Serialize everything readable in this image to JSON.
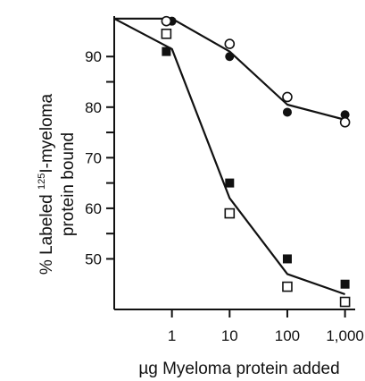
{
  "chart_data": {
    "type": "scatter",
    "title": "",
    "xlabel": "µg Myeloma protein added",
    "ylabel_prefix": "% Labeled ",
    "ylabel_sup": "125",
    "ylabel_rest": "I-myeloma",
    "ylabel_line2": "protein bound",
    "x_scale": "log",
    "xlim": [
      0.1,
      1500
    ],
    "ylim": [
      40,
      98
    ],
    "x_ticks": [
      1,
      10,
      100,
      1000
    ],
    "x_tick_labels": [
      "1",
      "10",
      "100",
      "1,000"
    ],
    "y_ticks": [
      50,
      60,
      70,
      80,
      90
    ],
    "y_tick_labels": [
      "50",
      "60",
      "70",
      "80",
      "90"
    ],
    "y_minor_ticks": [
      55,
      65,
      75,
      85
    ],
    "grid": false,
    "legend": "none",
    "series": [
      {
        "marker": "filled-circle",
        "points": [
          [
            1,
            97
          ],
          [
            10,
            90
          ],
          [
            100,
            79
          ],
          [
            1000,
            78.5
          ]
        ]
      },
      {
        "marker": "open-circle",
        "points": [
          [
            0.8,
            97
          ],
          [
            10,
            92.5
          ],
          [
            100,
            82
          ],
          [
            1000,
            77
          ]
        ]
      },
      {
        "marker": "filled-square",
        "points": [
          [
            0.8,
            91
          ],
          [
            10,
            65
          ],
          [
            100,
            50
          ],
          [
            1000,
            45
          ]
        ]
      },
      {
        "marker": "open-square",
        "points": [
          [
            0.8,
            94.5
          ],
          [
            10,
            59
          ],
          [
            100,
            44.5
          ],
          [
            1000,
            41.5
          ]
        ]
      }
    ],
    "curves": [
      {
        "points": [
          [
            0.1,
            97.5
          ],
          [
            1,
            97.5
          ],
          [
            10,
            91
          ],
          [
            100,
            80.5
          ],
          [
            1000,
            77.5
          ]
        ]
      },
      {
        "points": [
          [
            0.1,
            97.5
          ],
          [
            1,
            91.5
          ],
          [
            10,
            62
          ],
          [
            100,
            47
          ],
          [
            1000,
            43
          ]
        ]
      }
    ],
    "colors": {
      "ink": "#111111",
      "background": "#ffffff"
    }
  }
}
